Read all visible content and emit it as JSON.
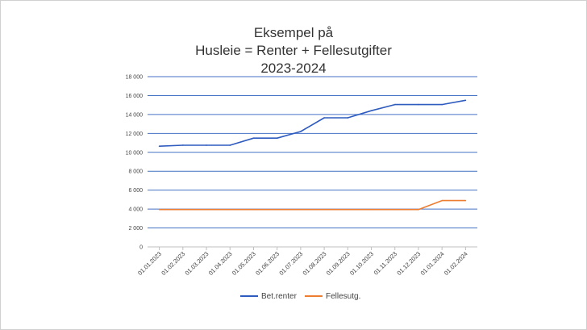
{
  "chart_data": {
    "type": "line",
    "title": [
      "Eksempel på",
      "Husleie = Renter + Fellesutgifter",
      "2023-2024"
    ],
    "xlabel": "",
    "ylabel": "",
    "categories": [
      "01.01.2023",
      "01.02.2023",
      "01.03.2023",
      "01.04.2023",
      "01.05.2023",
      "01.06.2023",
      "01.07.2023",
      "01.08.2023",
      "01.09.2023",
      "01.10.2023",
      "01.11.2023",
      "01.12.2023",
      "01.01.2024",
      "01.02.2024"
    ],
    "ylim": [
      0,
      18000
    ],
    "yticks": [
      0,
      2000,
      4000,
      6000,
      8000,
      10000,
      12000,
      14000,
      16000,
      18000
    ],
    "ytick_labels": [
      "0",
      "2 000",
      "4 000",
      "6 000",
      "8 000",
      "10 000",
      "12 000",
      "14 000",
      "16 000",
      "18 000"
    ],
    "grid": true,
    "legend_position": "bottom",
    "series": [
      {
        "name": "Bet.renter",
        "color": "#2e5bbf",
        "values": [
          10650,
          10750,
          10750,
          10750,
          11500,
          11500,
          12200,
          13650,
          13650,
          14400,
          15050,
          15050,
          15050,
          15500
        ]
      },
      {
        "name": "Fellesutg.",
        "color": "#ed7d31",
        "values": [
          3950,
          3950,
          3950,
          3950,
          3950,
          3950,
          3950,
          3950,
          3950,
          3950,
          3950,
          3950,
          4900,
          4900
        ]
      }
    ],
    "gridline_color": "#4472c4"
  }
}
